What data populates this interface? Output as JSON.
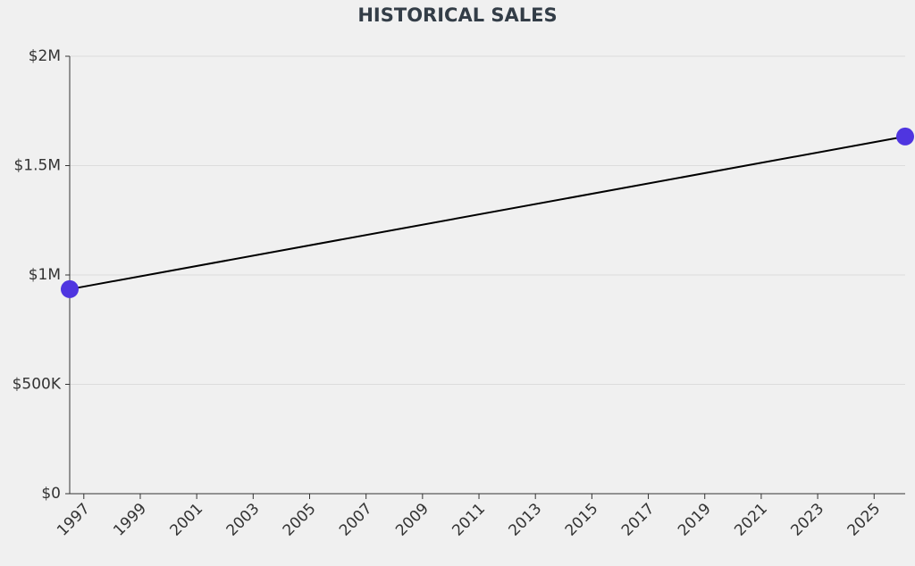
{
  "chart_data": {
    "type": "line",
    "title": "HISTORICAL SALES",
    "x": [
      1996.5,
      2026.1
    ],
    "series": [
      {
        "name": "Sales",
        "color": "#4f35e0",
        "values": [
          935000,
          1633000
        ]
      }
    ],
    "xlim": [
      1996.5,
      2026.1
    ],
    "xticks": [
      1997,
      1999,
      2001,
      2003,
      2005,
      2007,
      2009,
      2011,
      2013,
      2015,
      2017,
      2019,
      2021,
      2023,
      2025
    ],
    "ylim": [
      0,
      2000000
    ],
    "yticks": [
      {
        "value": 0,
        "label": "$0"
      },
      {
        "value": 500000,
        "label": "$500K"
      },
      {
        "value": 1000000,
        "label": "$1M"
      },
      {
        "value": 1500000,
        "label": "$1.5M"
      },
      {
        "value": 2000000,
        "label": "$2M"
      }
    ],
    "grid": true
  }
}
